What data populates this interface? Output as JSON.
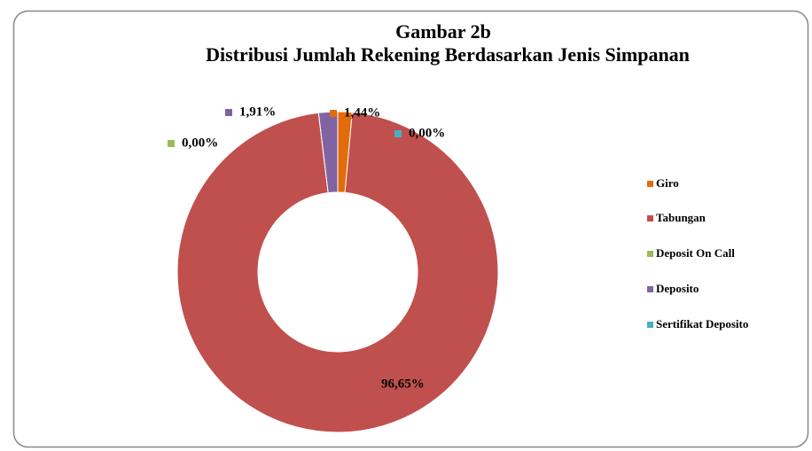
{
  "chart_data": {
    "type": "donut",
    "title": "Gambar 2b",
    "subtitle": "Distribusi Jumlah Rekening Berdasarkan Jenis Simpanan",
    "categories": [
      "Giro",
      "Tabungan",
      "Deposit On Call",
      "Deposito",
      "Sertifikat Deposito"
    ],
    "values": [
      1.44,
      96.65,
      0.0,
      1.91,
      0.0
    ],
    "value_labels": [
      "1,44%",
      "96,65%",
      "0,00%",
      "1,91%",
      "0,00%"
    ],
    "colors": [
      "#e36c0a",
      "#c0504d",
      "#9bbb59",
      "#8064a2",
      "#4bacc6"
    ],
    "legend": "right"
  }
}
